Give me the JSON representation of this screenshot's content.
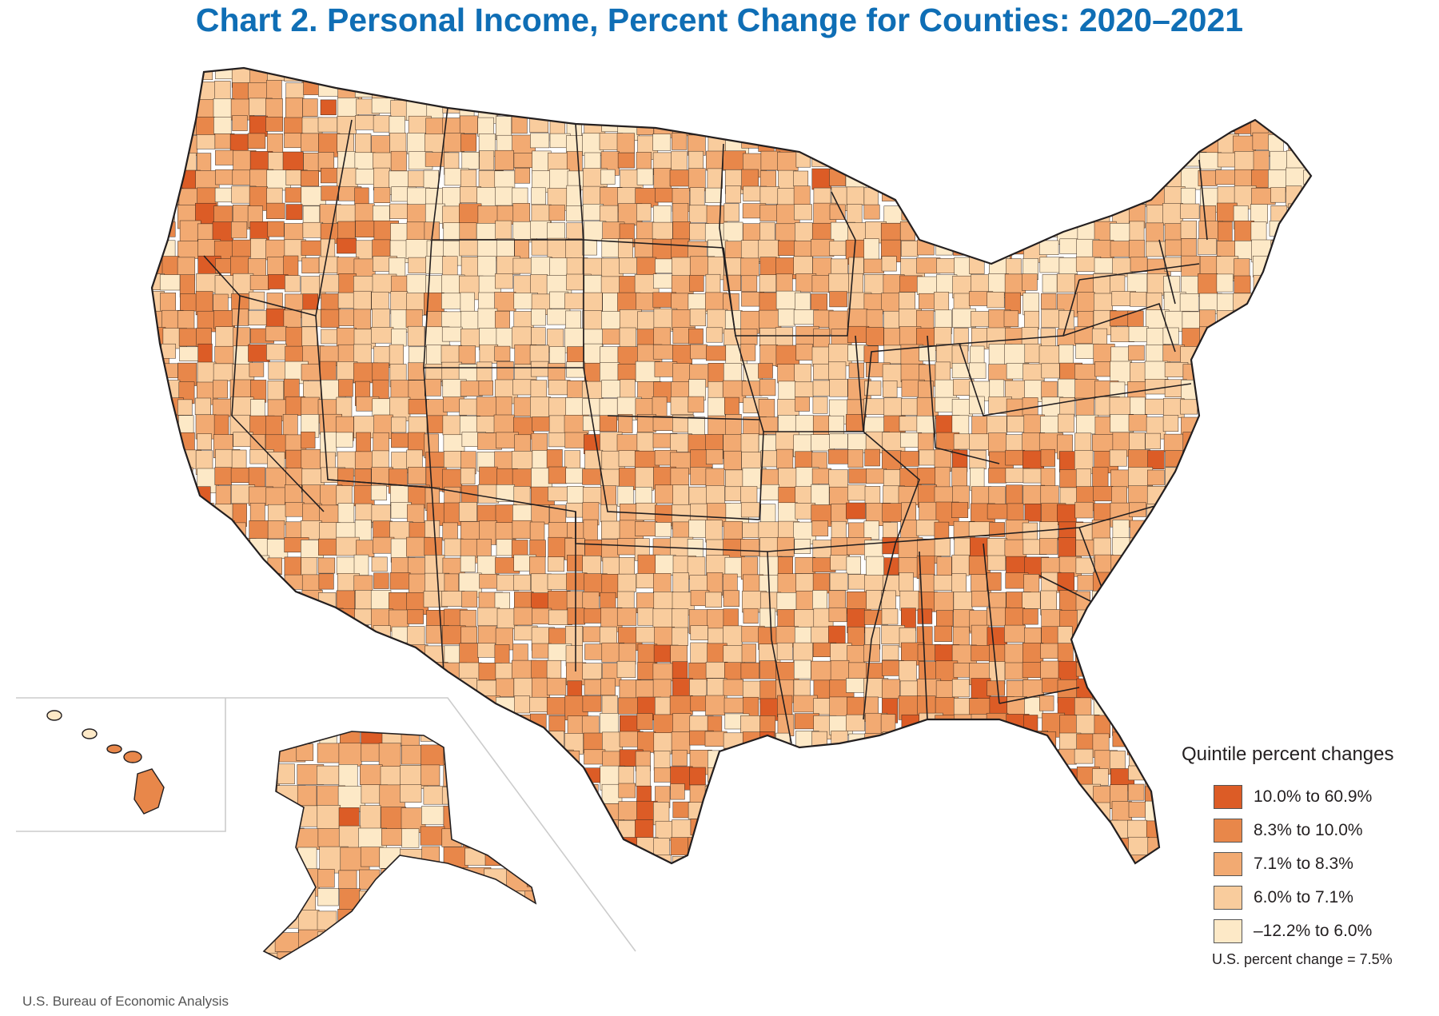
{
  "title": "Chart 2. Personal Income, Percent Change for Counties: 2020–2021",
  "legend": {
    "title": "Quintile percent changes",
    "items": [
      {
        "label": "10.0% to 60.9%",
        "color": "#dc5c26"
      },
      {
        "label": "8.3% to 10.0%",
        "color": "#e8874a"
      },
      {
        "label": "7.1% to 8.3%",
        "color": "#f2aa72"
      },
      {
        "label": "6.0% to 7.1%",
        "color": "#f9cc9d"
      },
      {
        "label": "–12.2% to 6.0%",
        "color": "#fde9c7"
      }
    ]
  },
  "us_change": "U.S. percent change = 7.5%",
  "source": "U.S. Bureau of Economic Analysis",
  "colors": {
    "title": "#0f6eb5",
    "border": "#231f20",
    "inset_line": "#cccccc"
  }
}
